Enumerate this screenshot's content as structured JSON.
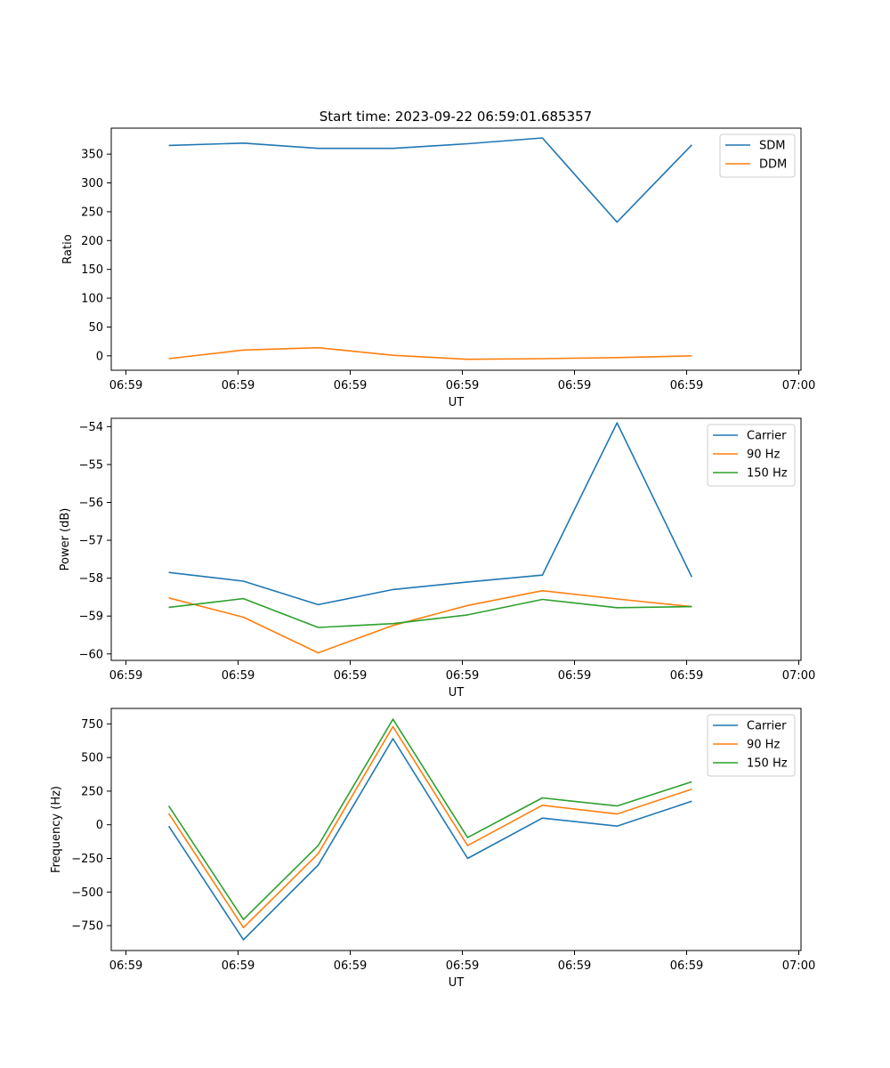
{
  "chart_data": [
    {
      "type": "line",
      "title": "Start time: 2023-09-22 06:59:01.685357",
      "xlabel": "UT",
      "ylabel": "Ratio",
      "xticks": [
        "06:59",
        "06:59",
        "06:59",
        "06:59",
        "06:59",
        "06:59",
        "07:00"
      ],
      "xlim": [
        0,
        6
      ],
      "x": [
        0.5,
        1.15,
        1.8,
        2.45,
        3.1,
        3.75,
        4.4,
        5.05
      ],
      "ylim": [
        -25,
        395
      ],
      "yticks": [
        0,
        50,
        100,
        150,
        200,
        250,
        300,
        350
      ],
      "legend_position": "top-right",
      "series": [
        {
          "name": "SDM",
          "color": "#1f77b4",
          "values": [
            365,
            369,
            360,
            360,
            368,
            378,
            232,
            366
          ]
        },
        {
          "name": "DDM",
          "color": "#ff7f0e",
          "values": [
            -5,
            10,
            14,
            1,
            -6,
            -5,
            -3,
            0
          ]
        }
      ]
    },
    {
      "type": "line",
      "title": "",
      "xlabel": "UT",
      "ylabel": "Power (dB)",
      "xticks": [
        "06:59",
        "06:59",
        "06:59",
        "06:59",
        "06:59",
        "06:59",
        "07:00"
      ],
      "xlim": [
        0,
        6
      ],
      "x": [
        0.5,
        1.15,
        1.8,
        2.45,
        3.1,
        3.75,
        4.4,
        5.05
      ],
      "ylim": [
        -60.17,
        -53.78
      ],
      "yticks": [
        -60,
        -59,
        -58,
        -57,
        -56,
        -55,
        -54
      ],
      "yticklabels": [
        "−60",
        "−59",
        "−58",
        "−57",
        "−56",
        "−55",
        "−54"
      ],
      "legend_position": "top-right",
      "series": [
        {
          "name": "Carrier",
          "color": "#1f77b4",
          "values": [
            -57.85,
            -58.08,
            -58.7,
            -58.3,
            -58.1,
            -57.92,
            -53.9,
            -57.97
          ]
        },
        {
          "name": "90 Hz",
          "color": "#ff7f0e",
          "values": [
            -58.52,
            -59.03,
            -59.97,
            -59.25,
            -58.72,
            -58.33,
            -58.55,
            -58.75
          ]
        },
        {
          "name": "150 Hz",
          "color": "#2ca02c",
          "values": [
            -58.77,
            -58.54,
            -59.3,
            -59.2,
            -58.97,
            -58.56,
            -58.78,
            -58.75
          ]
        }
      ]
    },
    {
      "type": "line",
      "title": "",
      "xlabel": "UT",
      "ylabel": "Frequency (Hz)",
      "xticks": [
        "06:59",
        "06:59",
        "06:59",
        "06:59",
        "06:59",
        "06:59",
        "07:00"
      ],
      "xlim": [
        0,
        6
      ],
      "x": [
        0.5,
        1.15,
        1.8,
        2.45,
        3.1,
        3.75,
        4.4,
        5.05
      ],
      "ylim": [
        -935,
        865
      ],
      "yticks": [
        -750,
        -500,
        -250,
        0,
        250,
        500,
        750
      ],
      "yticklabels": [
        "−750",
        "−500",
        "−250",
        "0",
        "250",
        "500",
        "750"
      ],
      "legend_position": "top-right",
      "series": [
        {
          "name": "Carrier",
          "color": "#1f77b4",
          "values": [
            -10,
            -855,
            -300,
            640,
            -250,
            50,
            -10,
            175
          ]
        },
        {
          "name": "90 Hz",
          "color": "#ff7f0e",
          "values": [
            85,
            -765,
            -215,
            730,
            -155,
            145,
            80,
            265
          ]
        },
        {
          "name": "150 Hz",
          "color": "#2ca02c",
          "values": [
            140,
            -705,
            -155,
            785,
            -95,
            200,
            140,
            320
          ]
        }
      ]
    }
  ]
}
